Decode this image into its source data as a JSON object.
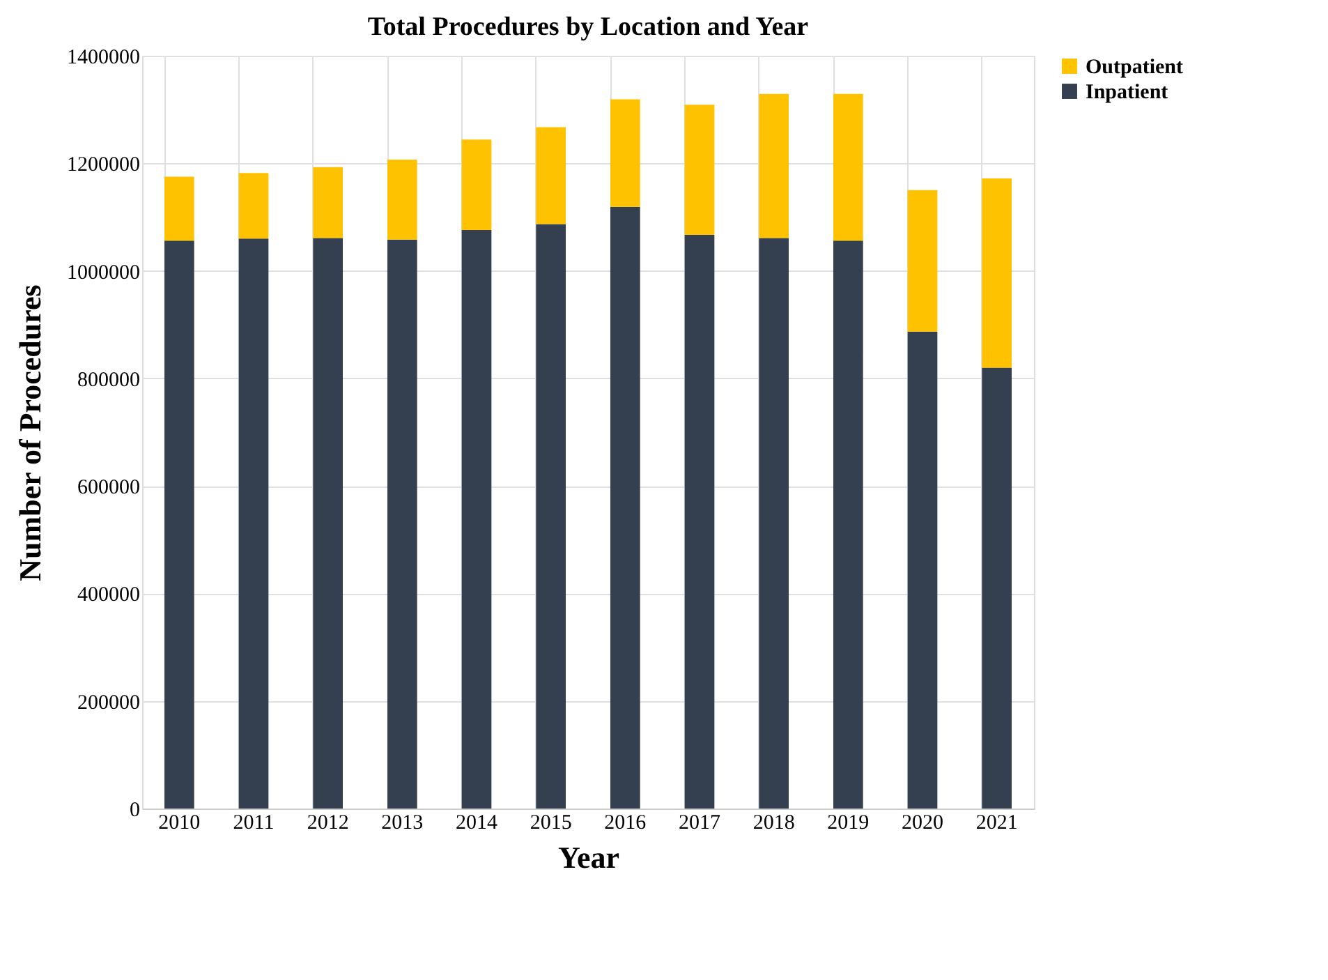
{
  "chart_data": {
    "type": "bar",
    "title": "Total Procedures by Location and Year",
    "xlabel": "Year",
    "ylabel": "Number of Procedures",
    "categories": [
      "2010",
      "2011",
      "2012",
      "2013",
      "2014",
      "2015",
      "2016",
      "2017",
      "2018",
      "2019",
      "2020",
      "2021"
    ],
    "stacked": true,
    "series": [
      {
        "name": "Inpatient",
        "color": "#343f50",
        "values": [
          1056000,
          1060000,
          1061000,
          1058000,
          1076000,
          1087000,
          1119000,
          1067000,
          1061000,
          1056000,
          887000,
          820000
        ]
      },
      {
        "name": "Outpatient",
        "color": "#fec200",
        "values": [
          119000,
          122000,
          132000,
          149000,
          168000,
          180000,
          200000,
          242000,
          268000,
          273000,
          263000,
          352000
        ]
      }
    ],
    "ylim": [
      0,
      1400000
    ],
    "yticks": [
      0,
      200000,
      400000,
      600000,
      800000,
      1000000,
      1200000,
      1400000
    ],
    "grid": true,
    "legend": "right"
  }
}
